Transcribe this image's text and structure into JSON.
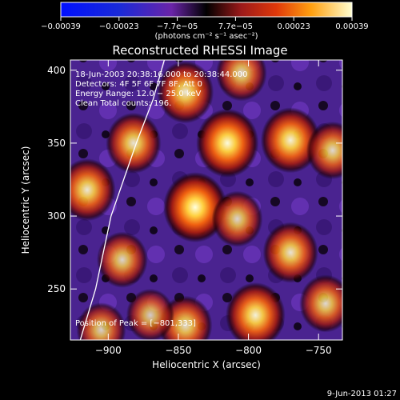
{
  "chart_data": {
    "type": "heatmap",
    "title": "Reconstructed RHESSI Image",
    "xlabel": "Heliocentric X (arcsec)",
    "ylabel": "Heliocentric Y (arcsec)",
    "xlim": [
      -927,
      -733
    ],
    "ylim": [
      215,
      407
    ],
    "x_ticks": [
      {
        "value": -900,
        "label": "−900"
      },
      {
        "value": -850,
        "label": "−850"
      },
      {
        "value": -800,
        "label": "−800"
      },
      {
        "value": -750,
        "label": "−750"
      }
    ],
    "y_ticks": [
      {
        "value": 250,
        "label": "250"
      },
      {
        "value": 300,
        "label": "300"
      },
      {
        "value": 350,
        "label": "350"
      },
      {
        "value": 400,
        "label": "400"
      }
    ],
    "colorbar": {
      "range": [
        -0.00039,
        0.00039
      ],
      "tick_labels": [
        "−0.00039",
        "−0.00023",
        "−7.7e−05",
        "7.7e−05",
        "0.00023",
        "0.00039"
      ],
      "units": "(photons cm⁻² s⁻¹ asec⁻²)"
    },
    "annotations": [
      "18-Jun-2003 20:38:16.000 to 20:38:44.000",
      "Detectors: 4F 5F 6F 7F 8F, Att 0",
      "Energy Range: 12.0 − 25.0 keV",
      "Clean     Total counts: 196."
    ],
    "peak_label": "Position of Peak = [−801,333]",
    "peak_position": [
      -801,
      333
    ],
    "blobs": [
      {
        "x": -838,
        "y": 306,
        "intensity": 1.0
      },
      {
        "x": -815,
        "y": 350,
        "intensity": 0.95
      },
      {
        "x": -770,
        "y": 352,
        "intensity": 0.85
      },
      {
        "x": -740,
        "y": 345,
        "intensity": 0.6
      },
      {
        "x": -915,
        "y": 318,
        "intensity": 0.75
      },
      {
        "x": -890,
        "y": 270,
        "intensity": 0.55
      },
      {
        "x": -882,
        "y": 350,
        "intensity": 0.7
      },
      {
        "x": -845,
        "y": 385,
        "intensity": 0.75
      },
      {
        "x": -805,
        "y": 398,
        "intensity": 0.55
      },
      {
        "x": -770,
        "y": 275,
        "intensity": 0.7
      },
      {
        "x": -795,
        "y": 232,
        "intensity": 0.85
      },
      {
        "x": -845,
        "y": 225,
        "intensity": 0.65
      },
      {
        "x": -745,
        "y": 240,
        "intensity": 0.6
      },
      {
        "x": -905,
        "y": 222,
        "intensity": 0.5
      },
      {
        "x": -808,
        "y": 298,
        "intensity": 0.55
      },
      {
        "x": -870,
        "y": 232,
        "intensity": 0.45
      }
    ],
    "limb_curve": [
      [
        -920,
        215
      ],
      [
        -909,
        250
      ],
      [
        -898,
        300
      ],
      [
        -880,
        350
      ],
      [
        -868,
        380
      ],
      [
        -860,
        407
      ]
    ],
    "grid": false
  },
  "footer_date": "9-Jun-2013 01:27"
}
